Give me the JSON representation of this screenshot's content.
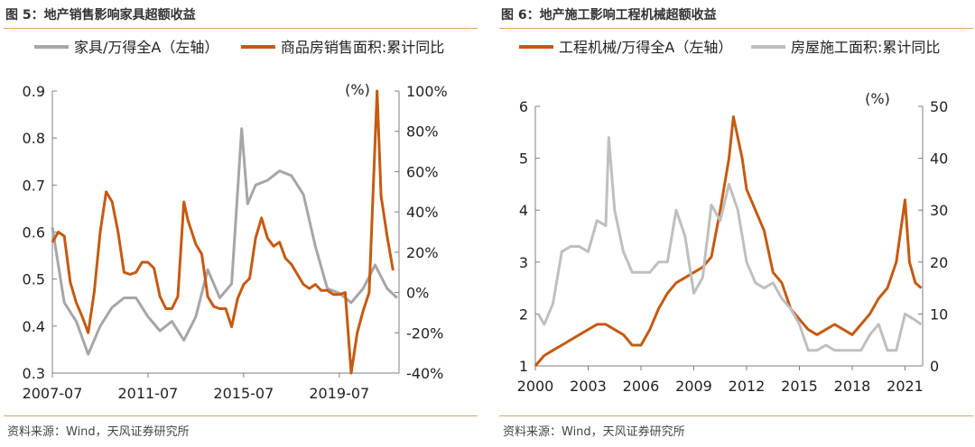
{
  "left": {
    "title": "图 5：地产销售影响家具超额收益",
    "source": "资料来源：Wind，天风证券研究所",
    "unit_label": "(%)",
    "chart_data": {
      "type": "line",
      "x_ticks": [
        "2007-07",
        "2011-07",
        "2015-07",
        "2019-07"
      ],
      "x_range": [
        "2007-07",
        "2022-01"
      ],
      "ylim_left": [
        0.3,
        0.9
      ],
      "yticks_left": [
        "0.9",
        "0.8",
        "0.7",
        "0.6",
        "0.5",
        "0.4",
        "0.3"
      ],
      "ylim_right": [
        -40,
        100
      ],
      "yticks_right": [
        "100%",
        "80%",
        "60%",
        "40%",
        "20%",
        "0%",
        "-20%",
        "-40%"
      ],
      "grid": false,
      "legend_position": "top",
      "series": [
        {
          "name": "家具/万得全A（左轴）",
          "axis": "left",
          "color": "#a6a6a6",
          "points": [
            [
              "2007-07",
              0.61
            ],
            [
              "2008-01",
              0.45
            ],
            [
              "2008-07",
              0.41
            ],
            [
              "2009-01",
              0.34
            ],
            [
              "2009-07",
              0.4
            ],
            [
              "2010-01",
              0.44
            ],
            [
              "2010-07",
              0.46
            ],
            [
              "2011-01",
              0.46
            ],
            [
              "2011-07",
              0.42
            ],
            [
              "2012-01",
              0.39
            ],
            [
              "2012-07",
              0.41
            ],
            [
              "2013-01",
              0.37
            ],
            [
              "2013-07",
              0.42
            ],
            [
              "2014-01",
              0.52
            ],
            [
              "2014-07",
              0.46
            ],
            [
              "2015-01",
              0.49
            ],
            [
              "2015-06",
              0.82
            ],
            [
              "2015-09",
              0.66
            ],
            [
              "2016-01",
              0.7
            ],
            [
              "2016-07",
              0.71
            ],
            [
              "2017-01",
              0.73
            ],
            [
              "2017-07",
              0.72
            ],
            [
              "2018-01",
              0.68
            ],
            [
              "2018-07",
              0.57
            ],
            [
              "2019-01",
              0.48
            ],
            [
              "2019-07",
              0.47
            ],
            [
              "2020-01",
              0.45
            ],
            [
              "2020-07",
              0.48
            ],
            [
              "2021-01",
              0.53
            ],
            [
              "2021-07",
              0.48
            ],
            [
              "2021-12",
              0.46
            ]
          ]
        },
        {
          "name": "商品房销售面积:累计同比",
          "axis": "right",
          "color": "#c55a11",
          "points": [
            [
              "2007-07",
              25
            ],
            [
              "2007-10",
              30
            ],
            [
              "2008-01",
              28
            ],
            [
              "2008-04",
              5
            ],
            [
              "2008-07",
              -5
            ],
            [
              "2008-10",
              -12
            ],
            [
              "2009-01",
              -20
            ],
            [
              "2009-04",
              0
            ],
            [
              "2009-07",
              30
            ],
            [
              "2009-10",
              50
            ],
            [
              "2010-01",
              45
            ],
            [
              "2010-04",
              30
            ],
            [
              "2010-07",
              10
            ],
            [
              "2010-10",
              9
            ],
            [
              "2011-01",
              10
            ],
            [
              "2011-04",
              15
            ],
            [
              "2011-07",
              15
            ],
            [
              "2011-10",
              12
            ],
            [
              "2012-01",
              -2
            ],
            [
              "2012-04",
              -8
            ],
            [
              "2012-07",
              -8
            ],
            [
              "2012-10",
              -2
            ],
            [
              "2013-01",
              45
            ],
            [
              "2013-03",
              36
            ],
            [
              "2013-07",
              24
            ],
            [
              "2013-10",
              19
            ],
            [
              "2014-01",
              -2
            ],
            [
              "2014-04",
              -7
            ],
            [
              "2014-07",
              -8
            ],
            [
              "2014-10",
              -8
            ],
            [
              "2015-01",
              -17
            ],
            [
              "2015-04",
              -3
            ],
            [
              "2015-07",
              4
            ],
            [
              "2015-10",
              7
            ],
            [
              "2016-01",
              27
            ],
            [
              "2016-04",
              37
            ],
            [
              "2016-07",
              27
            ],
            [
              "2016-10",
              23
            ],
            [
              "2017-01",
              25
            ],
            [
              "2017-04",
              17
            ],
            [
              "2017-07",
              14
            ],
            [
              "2017-10",
              9
            ],
            [
              "2018-01",
              4
            ],
            [
              "2018-04",
              2
            ],
            [
              "2018-07",
              4
            ],
            [
              "2018-10",
              1
            ],
            [
              "2019-01",
              1
            ],
            [
              "2019-04",
              -1
            ],
            [
              "2019-07",
              -1
            ],
            [
              "2019-10",
              0
            ],
            [
              "2020-01",
              -40
            ],
            [
              "2020-04",
              -20
            ],
            [
              "2020-07",
              -9
            ],
            [
              "2020-10",
              0
            ],
            [
              "2021-02",
              100
            ],
            [
              "2021-04",
              48
            ],
            [
              "2021-07",
              28
            ],
            [
              "2021-10",
              11
            ]
          ]
        }
      ]
    }
  },
  "right": {
    "title": "图 6：地产施工影响工程机械超额收益",
    "source": "资料来源：Wind，天风证券研究所",
    "unit_label": "(%)",
    "chart_data": {
      "type": "line",
      "x_ticks": [
        "2000",
        "2003",
        "2006",
        "2009",
        "2012",
        "2015",
        "2018",
        "2021"
      ],
      "x_range": [
        "2000-01",
        "2022-01"
      ],
      "ylim_left": [
        1,
        6
      ],
      "yticks_left": [
        "6",
        "5",
        "4",
        "3",
        "2",
        "1"
      ],
      "ylim_right": [
        0,
        50
      ],
      "yticks_right": [
        "50",
        "40",
        "30",
        "20",
        "10",
        "0"
      ],
      "grid": false,
      "legend_position": "top",
      "series": [
        {
          "name": "工程机械/万得全A（左轴）",
          "axis": "left",
          "color": "#c55a11",
          "points": [
            [
              "2000-01",
              1.0
            ],
            [
              "2000-07",
              1.2
            ],
            [
              "2001-01",
              1.3
            ],
            [
              "2001-07",
              1.4
            ],
            [
              "2002-01",
              1.5
            ],
            [
              "2002-07",
              1.6
            ],
            [
              "2003-01",
              1.7
            ],
            [
              "2003-07",
              1.8
            ],
            [
              "2004-01",
              1.8
            ],
            [
              "2004-07",
              1.7
            ],
            [
              "2005-01",
              1.6
            ],
            [
              "2005-07",
              1.4
            ],
            [
              "2006-01",
              1.4
            ],
            [
              "2006-07",
              1.7
            ],
            [
              "2007-01",
              2.1
            ],
            [
              "2007-07",
              2.4
            ],
            [
              "2008-01",
              2.6
            ],
            [
              "2008-07",
              2.7
            ],
            [
              "2009-01",
              2.8
            ],
            [
              "2009-07",
              2.9
            ],
            [
              "2010-01",
              3.1
            ],
            [
              "2010-07",
              4.0
            ],
            [
              "2011-01",
              5.0
            ],
            [
              "2011-04",
              5.8
            ],
            [
              "2011-10",
              5.0
            ],
            [
              "2012-01",
              4.4
            ],
            [
              "2012-07",
              4.0
            ],
            [
              "2013-01",
              3.6
            ],
            [
              "2013-07",
              2.8
            ],
            [
              "2014-01",
              2.6
            ],
            [
              "2014-07",
              2.1
            ],
            [
              "2015-01",
              1.9
            ],
            [
              "2015-07",
              1.7
            ],
            [
              "2016-01",
              1.6
            ],
            [
              "2016-07",
              1.7
            ],
            [
              "2017-01",
              1.8
            ],
            [
              "2017-07",
              1.7
            ],
            [
              "2018-01",
              1.6
            ],
            [
              "2018-07",
              1.8
            ],
            [
              "2019-01",
              2.0
            ],
            [
              "2019-07",
              2.3
            ],
            [
              "2020-01",
              2.5
            ],
            [
              "2020-07",
              3.0
            ],
            [
              "2021-01",
              4.2
            ],
            [
              "2021-04",
              3.0
            ],
            [
              "2021-08",
              2.6
            ],
            [
              "2021-12",
              2.5
            ]
          ]
        },
        {
          "name": "房屋施工面积:累计同比",
          "axis": "right",
          "color": "#bfbfbf",
          "points": [
            [
              "2000-03",
              10
            ],
            [
              "2000-07",
              8
            ],
            [
              "2001-01",
              12
            ],
            [
              "2001-07",
              22
            ],
            [
              "2002-01",
              23
            ],
            [
              "2002-07",
              23
            ],
            [
              "2003-01",
              22
            ],
            [
              "2003-07",
              28
            ],
            [
              "2004-01",
              27
            ],
            [
              "2004-03",
              44
            ],
            [
              "2004-07",
              30
            ],
            [
              "2005-01",
              22
            ],
            [
              "2005-07",
              18
            ],
            [
              "2006-01",
              18
            ],
            [
              "2006-07",
              18
            ],
            [
              "2007-01",
              20
            ],
            [
              "2007-07",
              20
            ],
            [
              "2008-01",
              30
            ],
            [
              "2008-07",
              25
            ],
            [
              "2009-01",
              14
            ],
            [
              "2009-07",
              17
            ],
            [
              "2010-01",
              31
            ],
            [
              "2010-07",
              28
            ],
            [
              "2011-01",
              35
            ],
            [
              "2011-07",
              30
            ],
            [
              "2012-01",
              20
            ],
            [
              "2012-07",
              16
            ],
            [
              "2013-01",
              15
            ],
            [
              "2013-07",
              16
            ],
            [
              "2014-01",
              13
            ],
            [
              "2014-07",
              11
            ],
            [
              "2015-01",
              8
            ],
            [
              "2015-07",
              3
            ],
            [
              "2016-01",
              3
            ],
            [
              "2016-07",
              4
            ],
            [
              "2017-01",
              3
            ],
            [
              "2017-07",
              3
            ],
            [
              "2018-01",
              3
            ],
            [
              "2018-07",
              3
            ],
            [
              "2019-01",
              6
            ],
            [
              "2019-07",
              8
            ],
            [
              "2020-01",
              3
            ],
            [
              "2020-07",
              3
            ],
            [
              "2021-01",
              10
            ],
            [
              "2021-07",
              9
            ],
            [
              "2021-12",
              8
            ]
          ]
        }
      ]
    }
  }
}
